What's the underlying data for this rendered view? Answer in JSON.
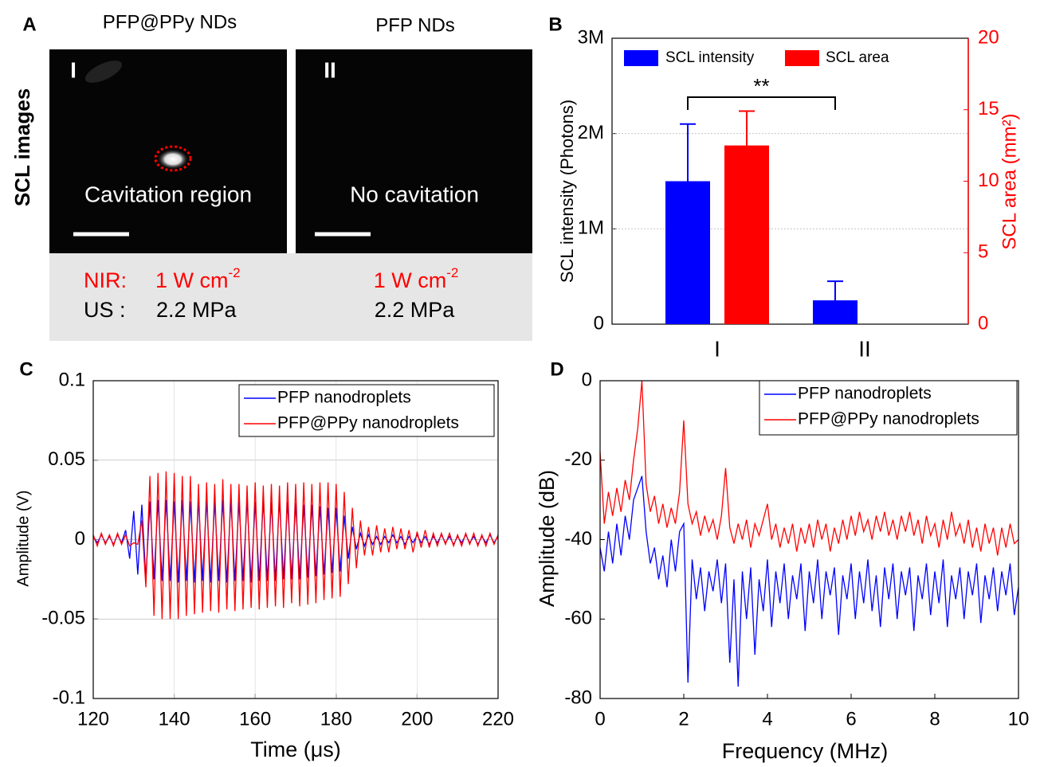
{
  "panel_a": {
    "label": "A",
    "row_label": "SCL images",
    "nir_label": "NIR:",
    "us_label": "US :",
    "columns": [
      {
        "title": "PFP@PPy NDs",
        "numeral": "I",
        "caption": "Cavitation region",
        "nir": "1 W cm",
        "nir_exponent": "-2",
        "us": "2.2 MPa"
      },
      {
        "title": "PFP NDs",
        "numeral": "II",
        "caption": "No cavitation",
        "nir": "1 W cm",
        "nir_exponent": "-2",
        "us": "2.2 MPa"
      }
    ]
  },
  "chart_data": [
    {
      "type": "bar",
      "panel_label": "B",
      "categories": [
        "I",
        "II"
      ],
      "ylabel": "SCL intensity (Photons)",
      "y2label": "SCL area (mm²)",
      "ylim": [
        0,
        3000000
      ],
      "yticks": [
        0,
        {
          "value": 1000000,
          "label": "1M"
        },
        {
          "value": 2000000,
          "label": "2M"
        },
        {
          "value": 3000000,
          "label": "3M"
        }
      ],
      "y2lim": [
        0,
        20
      ],
      "y2ticks": [
        0,
        5,
        10,
        15,
        20
      ],
      "y2color": "#ff0000",
      "grid": true,
      "legend": "top",
      "annotation": "**",
      "series": [
        {
          "name": "SCL intensity",
          "color": "#0000ff",
          "values": [
            1500000,
            250000
          ],
          "errors": [
            600000,
            200000
          ]
        },
        {
          "name": "SCL area",
          "color": "#ff0000",
          "axis": "y2",
          "values": [
            12.5,
            null
          ],
          "errors": [
            2.4,
            null
          ]
        }
      ]
    },
    {
      "type": "line",
      "panel_label": "C",
      "xlabel": "Time (μs)",
      "ylabel": "Amplitude (V)",
      "xlim": [
        120,
        220
      ],
      "xticks": [
        120,
        140,
        160,
        180,
        200,
        220
      ],
      "ylim": [
        -0.1,
        0.1
      ],
      "yticks": [
        -0.1,
        -0.05,
        0,
        0.05,
        0.1
      ],
      "grid": true,
      "legend": "upper right",
      "x": [
        120,
        121,
        122,
        123,
        124,
        125,
        126,
        127,
        128,
        129,
        130,
        131,
        132,
        133,
        134,
        135,
        136,
        137,
        138,
        139,
        140,
        141,
        142,
        143,
        144,
        145,
        146,
        147,
        148,
        149,
        150,
        151,
        152,
        153,
        154,
        155,
        156,
        157,
        158,
        159,
        160,
        161,
        162,
        163,
        164,
        165,
        166,
        167,
        168,
        169,
        170,
        171,
        172,
        173,
        174,
        175,
        176,
        177,
        178,
        179,
        180,
        181,
        182,
        183,
        184,
        185,
        186,
        187,
        188,
        189,
        190,
        191,
        192,
        193,
        194,
        195,
        196,
        197,
        198,
        199,
        200,
        201,
        202,
        203,
        204,
        205,
        206,
        207,
        208,
        209,
        210,
        211,
        212,
        213,
        214,
        215,
        216,
        217,
        218,
        219,
        220
      ],
      "series": [
        {
          "name": "PFP nanodroplets",
          "color": "#0000ff",
          "values": [
            0.002,
            -0.002,
            0.003,
            -0.002,
            0.002,
            -0.003,
            0.003,
            -0.002,
            0.006,
            -0.012,
            0.018,
            -0.022,
            0.022,
            -0.025,
            0.024,
            -0.025,
            0.025,
            -0.026,
            0.025,
            -0.026,
            0.024,
            -0.027,
            0.025,
            -0.026,
            0.024,
            -0.027,
            0.025,
            -0.026,
            0.025,
            -0.027,
            0.024,
            -0.026,
            0.025,
            -0.027,
            0.025,
            -0.026,
            0.024,
            -0.026,
            0.025,
            -0.027,
            0.024,
            -0.026,
            0.025,
            -0.026,
            0.024,
            -0.026,
            0.025,
            -0.025,
            0.024,
            -0.025,
            0.023,
            -0.025,
            0.022,
            -0.024,
            0.022,
            -0.023,
            0.021,
            -0.022,
            0.02,
            -0.021,
            0.02,
            -0.02,
            0.015,
            -0.012,
            0.008,
            -0.006,
            0.004,
            -0.004,
            0.003,
            -0.003,
            0.002,
            -0.003,
            0.002,
            -0.002,
            0.003,
            -0.002,
            0.002,
            -0.003,
            0.002,
            -0.002,
            0.003,
            -0.002,
            0.002,
            -0.003,
            0.002,
            -0.002,
            0.003,
            -0.002,
            0.002,
            -0.003,
            0.002,
            -0.002,
            0.003,
            -0.002,
            0.002,
            -0.003,
            0.002,
            -0.002,
            0.003,
            -0.002,
            0.002
          ]
        },
        {
          "name": "PFP@PPy nanodroplets",
          "color": "#ff0000",
          "values": [
            0.003,
            -0.004,
            0.004,
            -0.003,
            0.003,
            -0.004,
            0.004,
            -0.003,
            0.003,
            -0.004,
            -0.002,
            -0.003,
            0.012,
            -0.03,
            0.04,
            -0.048,
            0.042,
            -0.05,
            0.043,
            -0.05,
            0.042,
            -0.05,
            0.04,
            -0.048,
            0.04,
            -0.047,
            0.035,
            -0.046,
            0.036,
            -0.045,
            0.035,
            -0.046,
            0.038,
            -0.044,
            0.035,
            -0.045,
            0.035,
            -0.044,
            0.034,
            -0.043,
            0.036,
            -0.044,
            0.034,
            -0.043,
            0.035,
            -0.042,
            0.034,
            -0.043,
            0.036,
            -0.04,
            0.035,
            -0.042,
            0.036,
            -0.041,
            0.035,
            -0.04,
            0.036,
            -0.038,
            0.036,
            -0.037,
            0.035,
            -0.036,
            0.03,
            -0.028,
            0.02,
            -0.018,
            0.012,
            -0.01,
            0.008,
            -0.01,
            0.009,
            -0.008,
            0.007,
            -0.008,
            0.008,
            -0.006,
            0.007,
            -0.006,
            0.006,
            -0.008,
            0.005,
            -0.005,
            0.006,
            -0.005,
            0.004,
            -0.004,
            0.004,
            -0.003,
            0.004,
            -0.004,
            0.003,
            -0.004,
            0.004,
            -0.003,
            0.004,
            -0.004,
            0.003,
            -0.004,
            0.004,
            -0.003,
            0.003
          ]
        }
      ]
    },
    {
      "type": "line",
      "panel_label": "D",
      "xlabel": "Frequency (MHz)",
      "ylabel": "Amplitude (dB)",
      "xlim": [
        0,
        10
      ],
      "xticks": [
        0,
        2,
        4,
        6,
        8,
        10
      ],
      "ylim": [
        -80,
        0
      ],
      "yticks": [
        -80,
        -60,
        -40,
        -20,
        0
      ],
      "grid": false,
      "legend": "upper right",
      "x": [
        0,
        0.1,
        0.2,
        0.3,
        0.4,
        0.5,
        0.6,
        0.7,
        0.8,
        0.9,
        1,
        1.1,
        1.2,
        1.3,
        1.4,
        1.5,
        1.6,
        1.7,
        1.8,
        1.9,
        2,
        2.1,
        2.2,
        2.3,
        2.4,
        2.5,
        2.6,
        2.7,
        2.8,
        2.9,
        3,
        3.1,
        3.2,
        3.3,
        3.4,
        3.5,
        3.6,
        3.7,
        3.8,
        3.9,
        4,
        4.1,
        4.2,
        4.3,
        4.4,
        4.5,
        4.6,
        4.7,
        4.8,
        4.9,
        5,
        5.1,
        5.2,
        5.3,
        5.4,
        5.5,
        5.6,
        5.7,
        5.8,
        5.9,
        6,
        6.1,
        6.2,
        6.3,
        6.4,
        6.5,
        6.6,
        6.7,
        6.8,
        6.9,
        7,
        7.1,
        7.2,
        7.3,
        7.4,
        7.5,
        7.6,
        7.7,
        7.8,
        7.9,
        8,
        8.1,
        8.2,
        8.3,
        8.4,
        8.5,
        8.6,
        8.7,
        8.8,
        8.9,
        9,
        9.1,
        9.2,
        9.3,
        9.4,
        9.5,
        9.6,
        9.7,
        9.8,
        9.9,
        10
      ],
      "series": [
        {
          "name": "PFP nanodroplets",
          "color": "#0000ff",
          "values": [
            -42,
            -48,
            -38,
            -46,
            -36,
            -44,
            -34,
            -40,
            -30,
            -27,
            -24,
            -38,
            -46,
            -42,
            -50,
            -44,
            -52,
            -40,
            -48,
            -38,
            -36,
            -76,
            -45,
            -55,
            -47,
            -58,
            -48,
            -53,
            -45,
            -56,
            -46,
            -71,
            -50,
            -77,
            -48,
            -60,
            -47,
            -69,
            -50,
            -58,
            -45,
            -62,
            -48,
            -56,
            -46,
            -60,
            -49,
            -55,
            -46,
            -63,
            -48,
            -56,
            -45,
            -60,
            -48,
            -54,
            -47,
            -64,
            -49,
            -55,
            -46,
            -60,
            -48,
            -56,
            -45,
            -58,
            -49,
            -62,
            -47,
            -55,
            -46,
            -60,
            -48,
            -54,
            -47,
            -63,
            -49,
            -55,
            -46,
            -59,
            -48,
            -56,
            -45,
            -62,
            -49,
            -55,
            -47,
            -60,
            -48,
            -54,
            -46,
            -61,
            -49,
            -55,
            -47,
            -58,
            -48,
            -54,
            -46,
            -59,
            -52
          ]
        },
        {
          "name": "PFP@PPy nanodroplets",
          "color": "#ff0000",
          "values": [
            -18,
            -36,
            -28,
            -34,
            -27,
            -33,
            -25,
            -30,
            -20,
            -12,
            0,
            -26,
            -33,
            -29,
            -36,
            -31,
            -37,
            -32,
            -36,
            -28,
            -10,
            -31,
            -36,
            -33,
            -39,
            -34,
            -38,
            -35,
            -40,
            -34,
            -22,
            -37,
            -41,
            -36,
            -40,
            -35,
            -42,
            -36,
            -39,
            -35,
            -31,
            -40,
            -36,
            -42,
            -37,
            -41,
            -36,
            -43,
            -37,
            -41,
            -36,
            -42,
            -35,
            -40,
            -36,
            -43,
            -37,
            -41,
            -35,
            -40,
            -34,
            -39,
            -33,
            -38,
            -35,
            -40,
            -34,
            -38,
            -33,
            -39,
            -35,
            -40,
            -34,
            -38,
            -33,
            -39,
            -35,
            -41,
            -34,
            -39,
            -36,
            -42,
            -35,
            -40,
            -33,
            -39,
            -36,
            -41,
            -35,
            -42,
            -37,
            -43,
            -36,
            -41,
            -37,
            -44,
            -37,
            -42,
            -36,
            -41,
            -40
          ]
        }
      ]
    }
  ]
}
